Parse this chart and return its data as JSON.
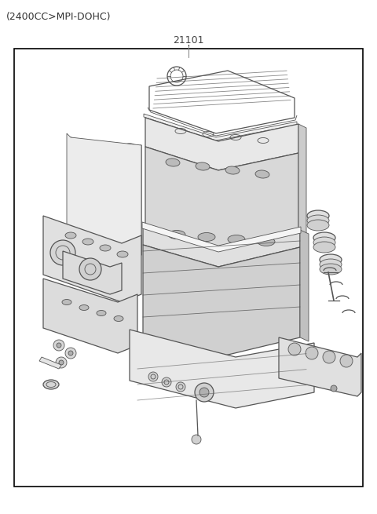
{
  "title": "(2400CC>MPI-DOHC)",
  "part_number": "21101",
  "background_color": "#ffffff",
  "border_color": "#000000",
  "line_color": "#555555",
  "title_fontsize": 9,
  "part_number_fontsize": 9,
  "fig_width": 4.8,
  "fig_height": 6.55,
  "dpi": 100
}
